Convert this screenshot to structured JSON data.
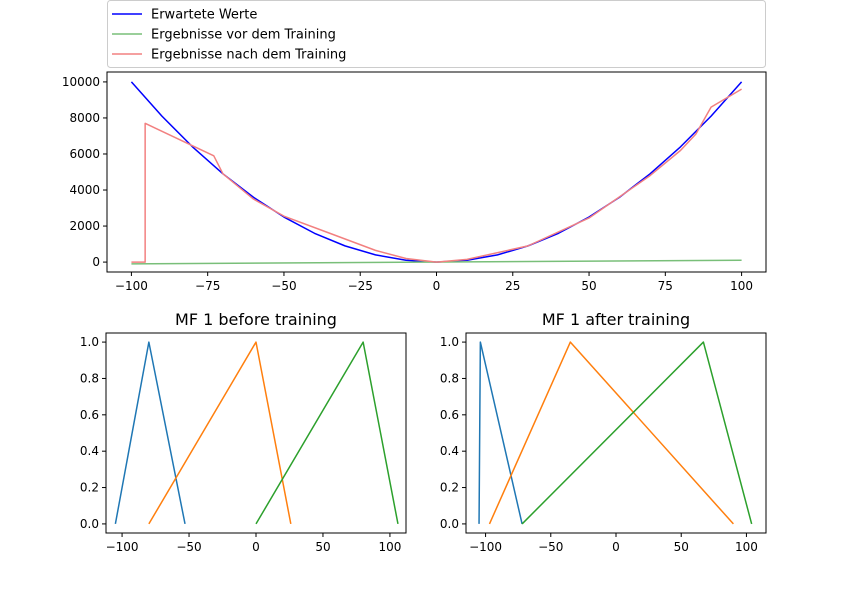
{
  "chart_data": [
    {
      "type": "line",
      "title": "",
      "xlabel": "",
      "ylabel": "",
      "xlim": [
        -108,
        108
      ],
      "ylim": [
        -550,
        10550
      ],
      "xticks": [
        -100,
        -75,
        -50,
        -25,
        0,
        25,
        50,
        75,
        100
      ],
      "yticks": [
        0,
        2000,
        4000,
        6000,
        8000,
        10000
      ],
      "legend_position": "above",
      "series": [
        {
          "name": "Erwartete Werte",
          "color": "#0000ff",
          "x": [
            -100,
            -90,
            -80,
            -70,
            -60,
            -50,
            -40,
            -30,
            -20,
            -10,
            0,
            10,
            20,
            30,
            40,
            50,
            60,
            70,
            80,
            90,
            100
          ],
          "y": [
            10000,
            8100,
            6400,
            4900,
            3600,
            2500,
            1600,
            900,
            400,
            100,
            0,
            100,
            400,
            900,
            1600,
            2500,
            3600,
            4900,
            6400,
            8100,
            10000
          ]
        },
        {
          "name": "Ergebnisse vor dem Training",
          "color": "#79bf79",
          "x": [
            -100,
            100
          ],
          "y": [
            -100,
            100
          ]
        },
        {
          "name": "Ergebnisse nach dem Training",
          "color": "#f28080",
          "x": [
            -100,
            -95.5,
            -95.5,
            -73,
            -70,
            -60,
            -50,
            -35,
            -20,
            -10,
            0,
            10,
            30,
            50,
            70,
            80,
            85,
            90,
            95,
            100
          ],
          "y": [
            0,
            0,
            7700,
            5900,
            4900,
            3500,
            2550,
            1600,
            650,
            200,
            0,
            150,
            900,
            2450,
            4800,
            6200,
            7100,
            8600,
            9100,
            9600
          ]
        }
      ]
    },
    {
      "type": "line",
      "title": "MF 1 before training",
      "xlim": [
        -112,
        112
      ],
      "ylim": [
        -0.05,
        1.05
      ],
      "xticks": [
        -100,
        -50,
        0,
        50,
        100
      ],
      "yticks": [
        0.0,
        0.2,
        0.4,
        0.6,
        0.8,
        1.0
      ],
      "series": [
        {
          "color": "#1f77b4",
          "x": [
            -105,
            -80,
            -53
          ],
          "y": [
            0,
            1,
            0
          ]
        },
        {
          "color": "#ff7f0e",
          "x": [
            -80,
            0,
            26
          ],
          "y": [
            0,
            1,
            0
          ]
        },
        {
          "color": "#2ca02c",
          "x": [
            0,
            80,
            106
          ],
          "y": [
            0,
            1,
            0
          ]
        }
      ]
    },
    {
      "type": "line",
      "title": "MF 1 after training",
      "xlim": [
        -115,
        115
      ],
      "ylim": [
        -0.05,
        1.05
      ],
      "xticks": [
        -100,
        -50,
        0,
        50,
        100
      ],
      "yticks": [
        0.0,
        0.2,
        0.4,
        0.6,
        0.8,
        1.0
      ],
      "series": [
        {
          "color": "#1f77b4",
          "x": [
            -105,
            -104,
            -72
          ],
          "y": [
            0,
            1,
            0
          ]
        },
        {
          "color": "#ff7f0e",
          "x": [
            -97,
            -35,
            90
          ],
          "y": [
            0,
            1,
            0
          ]
        },
        {
          "color": "#2ca02c",
          "x": [
            -72,
            67,
            104
          ],
          "y": [
            0,
            1,
            0
          ]
        }
      ]
    }
  ]
}
